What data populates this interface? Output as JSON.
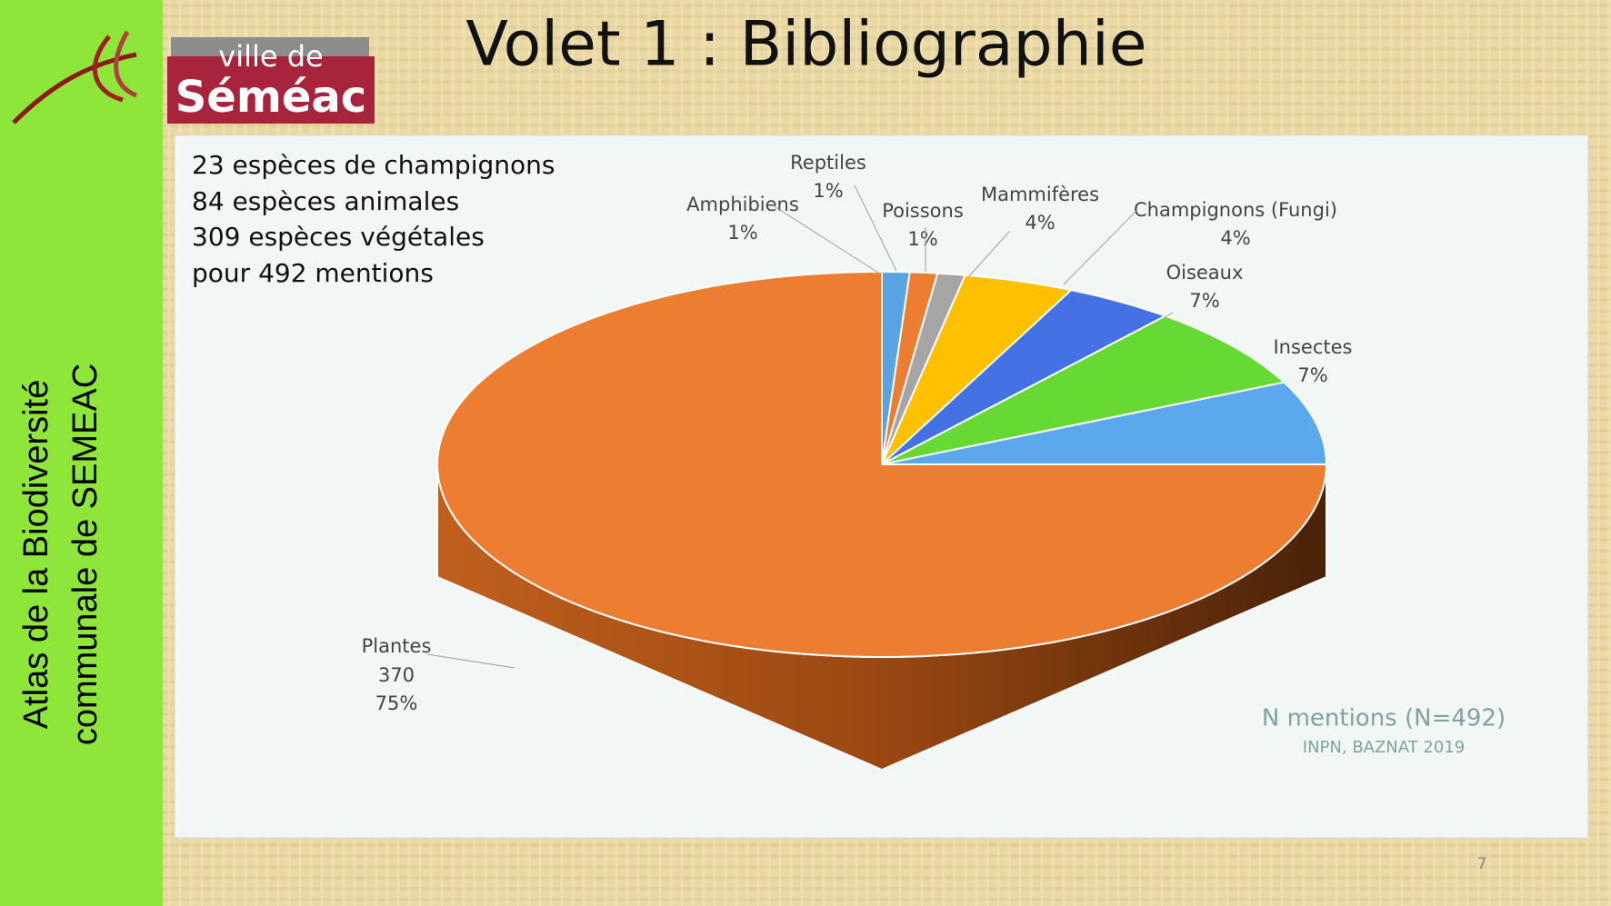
{
  "slide": {
    "title": "Volet 1 : Bibliographie",
    "logo": {
      "line1": "ville de",
      "line2": "Séméac"
    },
    "side_text": [
      "Atlas de la Biodiversité",
      "communale de SEMEAC"
    ],
    "summary": [
      "23 espèces de champignons",
      "84 espèces animales",
      "309 espèces végétales",
      "pour 492 mentions"
    ],
    "page_number": "7"
  },
  "chart_data": {
    "type": "pie",
    "categories": [
      "Amphibiens",
      "Reptiles",
      "Poissons",
      "Mammifères",
      "Champignons (Fungi)",
      "Oiseaux",
      "Insectes",
      "Plantes"
    ],
    "values": [
      1,
      1,
      1,
      4,
      4,
      7,
      7,
      75
    ],
    "value_labels": [
      "1%",
      "1%",
      "1%",
      "4%",
      "4%",
      "7%",
      "7%",
      "75%"
    ],
    "counts": [
      null,
      null,
      null,
      null,
      null,
      null,
      null,
      370
    ],
    "colors": [
      "#5ba3e0",
      "#ed7d31",
      "#a5a5a5",
      "#ffc000",
      "#4472e4",
      "#66d934",
      "#5ba8ec",
      "#ed7d31"
    ],
    "three_d": true,
    "annotations": [
      "N mentions (N=492)",
      "INPN, BAZNAT 2019"
    ]
  }
}
